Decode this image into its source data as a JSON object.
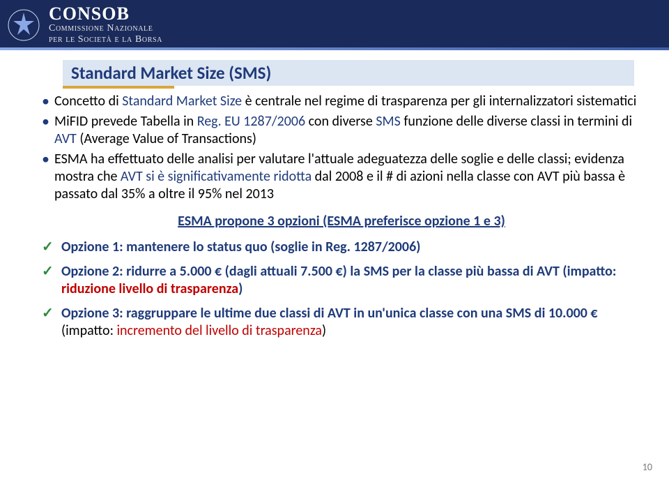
{
  "header": {
    "brand": "CONSOB",
    "sub1": "Commissione Nazionale",
    "sub2": "per le Società e la Borsa"
  },
  "title": "Standard Market Size (SMS)",
  "bullets": [
    {
      "parts": [
        {
          "t": "Concetto di ",
          "cls": ""
        },
        {
          "t": "Standard Market Size",
          "cls": "blue"
        },
        {
          "t": " è centrale nel regime di trasparenza per gli internalizzatori sistematici",
          "cls": ""
        }
      ]
    },
    {
      "parts": [
        {
          "t": "MiFID prevede Tabella in ",
          "cls": ""
        },
        {
          "t": "Reg. EU 1287/2006",
          "cls": "blue"
        },
        {
          "t": " con diverse ",
          "cls": ""
        },
        {
          "t": "SMS",
          "cls": "blue"
        },
        {
          "t": " funzione delle diverse classi in termini di ",
          "cls": ""
        },
        {
          "t": "AVT",
          "cls": "blue"
        },
        {
          "t": " (Average Value of Transactions)",
          "cls": ""
        }
      ]
    },
    {
      "parts": [
        {
          "t": "ESMA ha effettuato delle analisi per valutare l'attuale adeguatezza delle soglie e delle classi; evidenza mostra che ",
          "cls": ""
        },
        {
          "t": "AVT si è significativamente ridotta",
          "cls": "blue"
        },
        {
          "t": " dal 2008 e il # di azioni nella classe con AVT più bassa è passato dal 35% a oltre il 95% nel 2013",
          "cls": ""
        }
      ]
    }
  ],
  "center": "ESMA propone 3 opzioni (ESMA preferisce opzione 1 e 3)",
  "checks": [
    {
      "parts": [
        {
          "t": "Opzione 1: mantenere lo status quo (soglie in Reg. 1287/2006)",
          "cls": "blue bold"
        }
      ]
    },
    {
      "parts": [
        {
          "t": "Opzione 2: ridurre a 5.000 € (dagli attuali 7.500 €) la SMS per la classe più bassa di AVT (impatto: ",
          "cls": "blue bold"
        },
        {
          "t": "riduzione livello di trasparenza",
          "cls": "red bold"
        },
        {
          "t": ")",
          "cls": "blue bold"
        }
      ]
    },
    {
      "parts": [
        {
          "t": "Opzione 3: raggruppare le ultime due classi di AVT in un'unica classe con una SMS di 10.000 € ",
          "cls": "blue bold"
        },
        {
          "t": "(impatto: ",
          "cls": ""
        },
        {
          "t": "incremento del livello di trasparenza",
          "cls": "red"
        },
        {
          "t": ")",
          "cls": ""
        }
      ]
    }
  ],
  "pageNumber": "10",
  "colors": {
    "headerBg": "#1a2a5a",
    "titleBg": "#dce5f2",
    "titleColor": "#1f3b7a",
    "accentBar": "#d9a63a",
    "blueText": "#1f3b7a",
    "redText": "#c00000",
    "checkColor": "#2a8a3a"
  }
}
